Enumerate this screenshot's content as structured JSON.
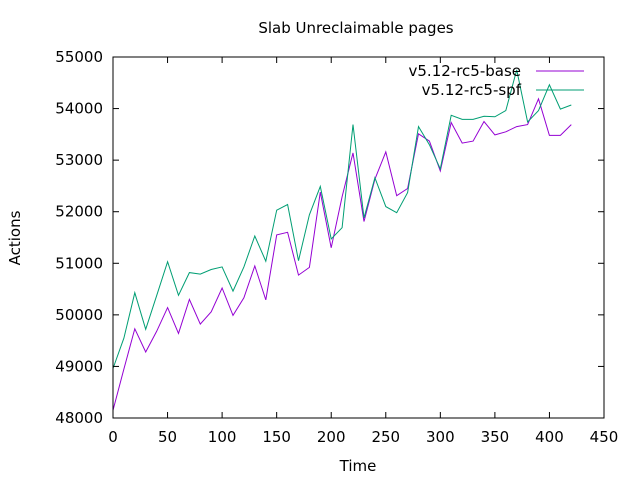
{
  "chart_data": {
    "type": "line",
    "title": "Slab Unreclaimable pages",
    "xlabel": "Time",
    "ylabel": "Actions",
    "xlim": [
      0,
      450
    ],
    "ylim": [
      48000,
      55000
    ],
    "xticks": [
      0,
      50,
      100,
      150,
      200,
      250,
      300,
      350,
      400,
      450
    ],
    "yticks": [
      48000,
      49000,
      50000,
      51000,
      52000,
      53000,
      54000,
      55000
    ],
    "grid": false,
    "legend_position": "top-right",
    "x": [
      0,
      10,
      20,
      30,
      40,
      50,
      60,
      70,
      80,
      90,
      100,
      110,
      120,
      130,
      140,
      150,
      160,
      170,
      180,
      190,
      200,
      210,
      220,
      230,
      240,
      250,
      260,
      270,
      280,
      290,
      300,
      310,
      320,
      330,
      340,
      350,
      360,
      370,
      380,
      390,
      400,
      410,
      420
    ],
    "series": [
      {
        "name": "v5.12-rc5-base",
        "color": "#9400d3",
        "values": [
          48150,
          48950,
          49730,
          49280,
          49680,
          50140,
          49640,
          50300,
          49820,
          50060,
          50520,
          49990,
          50330,
          50950,
          50290,
          51550,
          51600,
          50770,
          50920,
          52380,
          51300,
          52290,
          53140,
          51810,
          52630,
          53160,
          52310,
          52450,
          53510,
          53370,
          52790,
          53730,
          53330,
          53370,
          53750,
          53490,
          53550,
          53650,
          53690,
          54190,
          53480,
          53480,
          53690
        ]
      },
      {
        "name": "v5.12-rc5-spf",
        "color": "#009e73",
        "values": [
          48960,
          49550,
          50430,
          49720,
          50370,
          51030,
          50380,
          50820,
          50790,
          50880,
          50930,
          50460,
          50930,
          51530,
          51040,
          52030,
          52140,
          51050,
          51940,
          52490,
          51470,
          51690,
          53690,
          51880,
          52660,
          52100,
          51980,
          52370,
          53650,
          53300,
          52830,
          53870,
          53790,
          53790,
          53850,
          53840,
          53960,
          54750,
          53740,
          53960,
          54460,
          53990,
          54070
        ]
      }
    ]
  }
}
